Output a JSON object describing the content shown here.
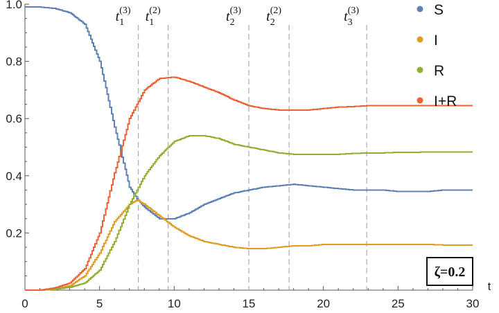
{
  "chart_data": {
    "type": "line",
    "title": "",
    "xlabel": "t",
    "ylabel": "",
    "xlim": [
      0,
      30
    ],
    "ylim": [
      0,
      1.0
    ],
    "x_ticks": [
      0,
      5,
      10,
      15,
      20,
      25,
      30
    ],
    "x_tick_labels": [
      "0",
      "5",
      "10",
      "15",
      "20",
      "25",
      "30"
    ],
    "y_ticks": [
      0.2,
      0.4,
      0.6,
      0.8,
      1.0
    ],
    "y_tick_labels": [
      "0.2",
      "0.4",
      "0.6",
      "0.8",
      "1.0"
    ],
    "series": [
      {
        "name": "S",
        "color": "#5e81b5",
        "points": [
          [
            0,
            0.99
          ],
          [
            1,
            0.99
          ],
          [
            2,
            0.985
          ],
          [
            3,
            0.97
          ],
          [
            4,
            0.93
          ],
          [
            5,
            0.8
          ],
          [
            6,
            0.57
          ],
          [
            7,
            0.36
          ],
          [
            7.5,
            0.32
          ],
          [
            8,
            0.29
          ],
          [
            9,
            0.25
          ],
          [
            10,
            0.25
          ],
          [
            11,
            0.27
          ],
          [
            12,
            0.3
          ],
          [
            13,
            0.32
          ],
          [
            14,
            0.34
          ],
          [
            15,
            0.35
          ],
          [
            16,
            0.36
          ],
          [
            17,
            0.365
          ],
          [
            18,
            0.37
          ],
          [
            19,
            0.365
          ],
          [
            20,
            0.36
          ],
          [
            21,
            0.355
          ],
          [
            22,
            0.35
          ],
          [
            23,
            0.35
          ],
          [
            24,
            0.35
          ],
          [
            25,
            0.345
          ],
          [
            26,
            0.345
          ],
          [
            27,
            0.345
          ],
          [
            28,
            0.35
          ],
          [
            29,
            0.35
          ],
          [
            30,
            0.35
          ]
        ]
      },
      {
        "name": "I",
        "color": "#e19c24",
        "points": [
          [
            0,
            0
          ],
          [
            1,
            0
          ],
          [
            2,
            0.005
          ],
          [
            3,
            0.015
          ],
          [
            4,
            0.05
          ],
          [
            5,
            0.13
          ],
          [
            6,
            0.24
          ],
          [
            7,
            0.3
          ],
          [
            7.5,
            0.315
          ],
          [
            8,
            0.3
          ],
          [
            9,
            0.26
          ],
          [
            10,
            0.22
          ],
          [
            11,
            0.19
          ],
          [
            12,
            0.17
          ],
          [
            13,
            0.16
          ],
          [
            14,
            0.15
          ],
          [
            15,
            0.145
          ],
          [
            16,
            0.145
          ],
          [
            17,
            0.15
          ],
          [
            18,
            0.155
          ],
          [
            19,
            0.155
          ],
          [
            20,
            0.16
          ],
          [
            21,
            0.16
          ],
          [
            22,
            0.16
          ],
          [
            23,
            0.16
          ],
          [
            24,
            0.16
          ],
          [
            25,
            0.16
          ],
          [
            26,
            0.16
          ],
          [
            27,
            0.16
          ],
          [
            28,
            0.158
          ],
          [
            29,
            0.157
          ],
          [
            30,
            0.157
          ]
        ]
      },
      {
        "name": "R",
        "color": "#8fb032",
        "points": [
          [
            0,
            0
          ],
          [
            1,
            0
          ],
          [
            2,
            0.003
          ],
          [
            3,
            0.01
          ],
          [
            4,
            0.025
          ],
          [
            5,
            0.07
          ],
          [
            6,
            0.17
          ],
          [
            7,
            0.3
          ],
          [
            7.5,
            0.35
          ],
          [
            8,
            0.4
          ],
          [
            9,
            0.47
          ],
          [
            10,
            0.52
          ],
          [
            11,
            0.54
          ],
          [
            12,
            0.54
          ],
          [
            13,
            0.53
          ],
          [
            14,
            0.51
          ],
          [
            15,
            0.5
          ],
          [
            16,
            0.49
          ],
          [
            17,
            0.48
          ],
          [
            18,
            0.475
          ],
          [
            19,
            0.475
          ],
          [
            20,
            0.475
          ],
          [
            21,
            0.475
          ],
          [
            22,
            0.478
          ],
          [
            23,
            0.48
          ],
          [
            24,
            0.48
          ],
          [
            25,
            0.482
          ],
          [
            26,
            0.482
          ],
          [
            27,
            0.483
          ],
          [
            28,
            0.483
          ],
          [
            29,
            0.483
          ],
          [
            30,
            0.483
          ]
        ]
      },
      {
        "name": "I+R",
        "color": "#eb6235",
        "points": [
          [
            0,
            0
          ],
          [
            1,
            0
          ],
          [
            2,
            0.008
          ],
          [
            3,
            0.025
          ],
          [
            4,
            0.075
          ],
          [
            5,
            0.2
          ],
          [
            6,
            0.41
          ],
          [
            7,
            0.6
          ],
          [
            8,
            0.7
          ],
          [
            9,
            0.74
          ],
          [
            10,
            0.745
          ],
          [
            11,
            0.73
          ],
          [
            12,
            0.71
          ],
          [
            13,
            0.69
          ],
          [
            14,
            0.665
          ],
          [
            15,
            0.645
          ],
          [
            16,
            0.635
          ],
          [
            17,
            0.63
          ],
          [
            18,
            0.63
          ],
          [
            19,
            0.63
          ],
          [
            20,
            0.635
          ],
          [
            21,
            0.64
          ],
          [
            22,
            0.642
          ],
          [
            23,
            0.645
          ],
          [
            24,
            0.645
          ],
          [
            25,
            0.645
          ],
          [
            26,
            0.645
          ],
          [
            27,
            0.645
          ],
          [
            28,
            0.645
          ],
          [
            29,
            0.645
          ],
          [
            30,
            0.645
          ]
        ]
      }
    ],
    "vertical_markers": [
      {
        "x": 7.6,
        "base": "t",
        "sub": "1",
        "sup": "(3)"
      },
      {
        "x": 9.6,
        "base": "t",
        "sub": "1",
        "sup": "(2)"
      },
      {
        "x": 15.0,
        "base": "t",
        "sub": "2",
        "sup": "(3)"
      },
      {
        "x": 17.7,
        "base": "t",
        "sub": "2",
        "sup": "(2)"
      },
      {
        "x": 22.9,
        "base": "t",
        "sub": "3",
        "sup": "(3)"
      }
    ],
    "annotation": "ζ=0.2",
    "legend_position": "top-right",
    "grid": false
  }
}
